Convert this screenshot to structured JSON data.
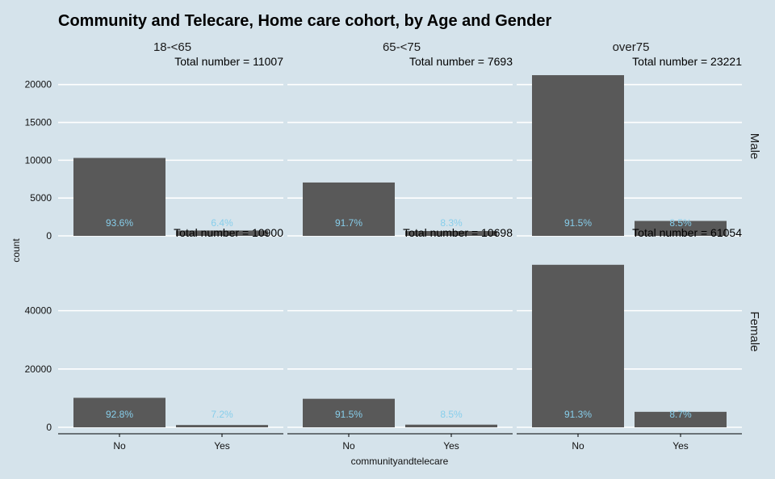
{
  "chart_data": {
    "type": "bar",
    "title": "Community and Telecare, Home care cohort, by Age and Gender",
    "xlabel": "communityandtelecare",
    "ylabel": "count",
    "categories": [
      "No",
      "Yes"
    ],
    "facet_columns": [
      "18-<65",
      "65-<75",
      "over75"
    ],
    "facet_rows": [
      "Male",
      "Female"
    ],
    "y_ranges": {
      "Male": [
        0,
        22000
      ],
      "Female": [
        0,
        64000
      ]
    },
    "y_ticks": {
      "Male": [
        0,
        5000,
        10000,
        15000,
        20000
      ],
      "Female": [
        0,
        20000,
        40000
      ]
    },
    "grid": true,
    "colors": {
      "background": "#d5e3eb",
      "bar": "#595959",
      "grid": "#ffffff",
      "percent_label": "#87ceeb"
    },
    "panels": [
      {
        "row": "Male",
        "column": "18-<65",
        "total_label": "Total number = 11007",
        "values": [
          10303,
          704
        ],
        "percent_labels": [
          "93.6%",
          "6.4%"
        ]
      },
      {
        "row": "Male",
        "column": "65-<75",
        "total_label": "Total number = 7693",
        "values": [
          7055,
          638
        ],
        "percent_labels": [
          "91.7%",
          "8.3%"
        ]
      },
      {
        "row": "Male",
        "column": "over75",
        "total_label": "Total number = 23221",
        "values": [
          21247,
          1974
        ],
        "percent_labels": [
          "91.5%",
          "8.5%"
        ]
      },
      {
        "row": "Female",
        "column": "18-<65",
        "total_label": "Total number = 10900",
        "values": [
          10115,
          785
        ],
        "percent_labels": [
          "92.8%",
          "7.2%"
        ]
      },
      {
        "row": "Female",
        "column": "65-<75",
        "total_label": "Total number = 10698",
        "values": [
          9789,
          909
        ],
        "percent_labels": [
          "91.5%",
          "8.5%"
        ]
      },
      {
        "row": "Female",
        "column": "over75",
        "total_label": "Total number = 61054",
        "values": [
          55742,
          5312
        ],
        "percent_labels": [
          "91.3%",
          "8.7%"
        ]
      }
    ]
  }
}
